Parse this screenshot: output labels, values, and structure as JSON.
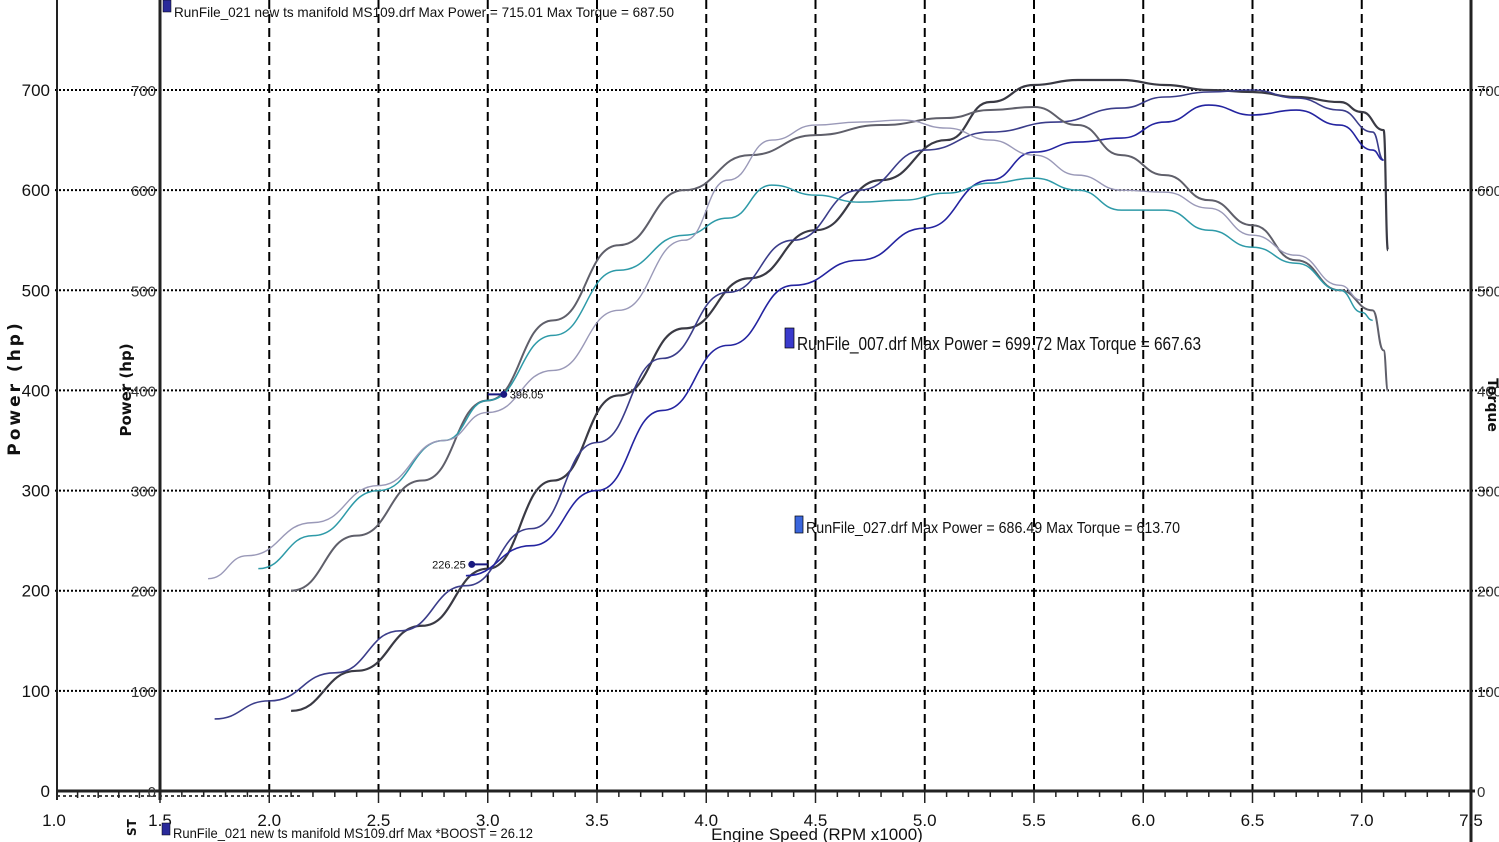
{
  "chart_data": {
    "type": "line",
    "title": "",
    "xlabel": "Engine Speed (RPM x1000)",
    "ylabel": "Power (hp)",
    "ylabel_secondary": "Power (hp)",
    "ylabel_right": "Torque",
    "xlim": [
      1.5,
      7.5
    ],
    "ylim": [
      0,
      800
    ],
    "x_tick_labels": [
      "1.0",
      "1.5",
      "2.0",
      "2.5",
      "3.0",
      "3.5",
      "4.0",
      "4.5",
      "5.0",
      "5.5",
      "6.0",
      "6.5",
      "7.0",
      "7.5"
    ],
    "y_tick_labels": [
      "0",
      "100",
      "200",
      "300",
      "400",
      "500",
      "600",
      "700"
    ],
    "grid": true,
    "legends": {
      "top": "RunFile_021 new ts manifold MS109.drf Max Power = 715.01     Max Torque = 687.50",
      "mid1": "RunFile_007.drf Max Power = 699.72    Max Torque = 667.63",
      "mid2": "RunFile_027.drf Max Power = 686.49    Max Torque = 613.70",
      "bottom": "RunFile_021 new ts manifold MS109.drf Max *BOOST = 26.12"
    },
    "bottom_left_label": "ST",
    "cursor_labels": [
      {
        "text": "396.05",
        "x": 3.0,
        "y": 396.05
      },
      {
        "text": "226.25",
        "x": 3.0,
        "y": 226.25
      }
    ],
    "series": [
      {
        "color": "#3a3a44",
        "width": 2.2,
        "x": [
          2.1,
          2.4,
          2.7,
          3.0,
          3.3,
          3.6,
          3.9,
          4.2,
          4.5,
          4.8,
          5.1,
          5.3,
          5.5,
          5.7,
          5.9,
          6.1,
          6.3,
          6.5,
          6.7,
          6.9,
          7.0,
          7.1,
          7.12
        ],
        "y": [
          80,
          120,
          165,
          222,
          310,
          395,
          462,
          512,
          560,
          610,
          650,
          688,
          705,
          710,
          710,
          705,
          700,
          698,
          693,
          688,
          678,
          660,
          540
        ]
      },
      {
        "color": "#3b3d8a",
        "width": 1.6,
        "x": [
          1.75,
          2.0,
          2.3,
          2.6,
          2.9,
          3.2,
          3.5,
          3.8,
          4.1,
          4.4,
          4.7,
          5.0,
          5.3,
          5.6,
          5.9,
          6.1,
          6.3,
          6.5,
          6.7,
          6.9,
          7.05,
          7.1
        ],
        "y": [
          72,
          90,
          118,
          160,
          205,
          262,
          348,
          432,
          498,
          550,
          600,
          640,
          658,
          668,
          682,
          693,
          698,
          700,
          692,
          680,
          658,
          630
        ]
      },
      {
        "color": "#2424a0",
        "width": 1.6,
        "x": [
          2.9,
          3.2,
          3.5,
          3.8,
          4.1,
          4.4,
          4.7,
          5.0,
          5.3,
          5.5,
          5.7,
          5.9,
          6.1,
          6.3,
          6.5,
          6.7,
          6.9,
          7.05,
          7.1
        ],
        "y": [
          215,
          245,
          300,
          380,
          445,
          505,
          530,
          562,
          610,
          638,
          648,
          652,
          668,
          685,
          675,
          680,
          665,
          640,
          630
        ]
      },
      {
        "color": "#5f5f6a",
        "width": 2.0,
        "x": [
          2.1,
          2.4,
          2.7,
          3.0,
          3.3,
          3.6,
          3.9,
          4.2,
          4.5,
          4.8,
          5.1,
          5.3,
          5.5,
          5.7,
          5.9,
          6.1,
          6.3,
          6.5,
          6.7,
          6.9,
          7.05,
          7.1,
          7.12
        ],
        "y": [
          200,
          255,
          310,
          390,
          470,
          545,
          600,
          635,
          655,
          665,
          672,
          680,
          683,
          665,
          635,
          615,
          590,
          565,
          530,
          500,
          480,
          440,
          400
        ]
      },
      {
        "color": "#2e9aa8",
        "width": 1.5,
        "x": [
          1.95,
          2.2,
          2.5,
          2.8,
          3.0,
          3.3,
          3.6,
          3.9,
          4.1,
          4.3,
          4.5,
          4.7,
          4.9,
          5.1,
          5.3,
          5.5,
          5.7,
          5.9,
          6.1,
          6.3,
          6.5,
          6.7,
          6.9,
          7.0,
          7.05
        ],
        "y": [
          222,
          255,
          300,
          350,
          390,
          455,
          520,
          555,
          572,
          605,
          595,
          588,
          590,
          597,
          607,
          612,
          600,
          580,
          580,
          560,
          543,
          527,
          500,
          478,
          470
        ]
      },
      {
        "color": "#9a99b8",
        "width": 1.4,
        "x": [
          1.72,
          1.9,
          2.2,
          2.5,
          2.8,
          3.0,
          3.3,
          3.6,
          3.9,
          4.1,
          4.3,
          4.5,
          4.7,
          4.9,
          5.1,
          5.3,
          5.5,
          5.7,
          5.9,
          6.1,
          6.3,
          6.5,
          6.7,
          6.9,
          7.0
        ],
        "y": [
          212,
          235,
          268,
          305,
          350,
          378,
          420,
          480,
          550,
          610,
          650,
          665,
          668,
          670,
          662,
          650,
          635,
          615,
          600,
          598,
          582,
          555,
          535,
          505,
          490
        ]
      }
    ]
  }
}
